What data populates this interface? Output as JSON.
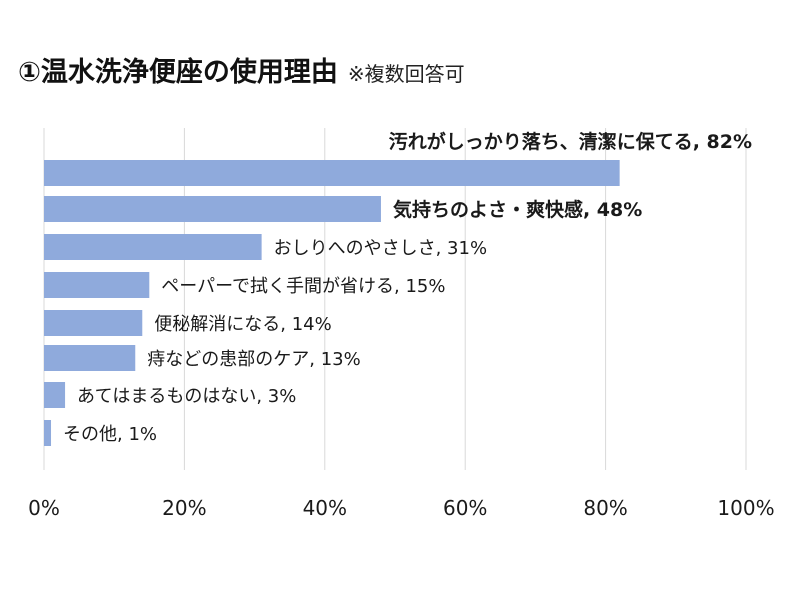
{
  "title": "①温水洗浄便座の使用理由",
  "subtitle": "※複数回答可",
  "chart_data": {
    "type": "bar",
    "orientation": "horizontal",
    "categories": [
      "汚れがしっかり落ち、清潔に保てる",
      "気持ちのよさ・爽快感",
      "おしりへのやさしさ",
      "ペーパーで拭く手間が省ける",
      "便秘解消になる",
      "痔などの患部のケア",
      "あてはまるものはない",
      "その他"
    ],
    "values": [
      82,
      48,
      31,
      15,
      14,
      13,
      3,
      1
    ],
    "data_labels": [
      "汚れがしっかり落ち、清潔に保てる, 82%",
      "気持ちのよさ・爽快感, 48%",
      "おしりへのやさしさ, 31%",
      "ペーパーで拭く手間が省ける, 15%",
      "便秘解消になる, 14%",
      "痔などの患部のケア, 13%",
      "あてはまるものはない, 3%",
      "その他, 1%"
    ],
    "highlighted": [
      true,
      true,
      false,
      false,
      false,
      false,
      false,
      false
    ],
    "xlim": [
      0,
      100
    ],
    "x_ticks": [
      "0%",
      "20%",
      "40%",
      "60%",
      "80%",
      "100%"
    ],
    "grid": true,
    "colors": {
      "bar": "#8faadc",
      "highlight_label": "#e00000",
      "label": "#1a1a1a",
      "grid": "#d9d9d9"
    }
  }
}
